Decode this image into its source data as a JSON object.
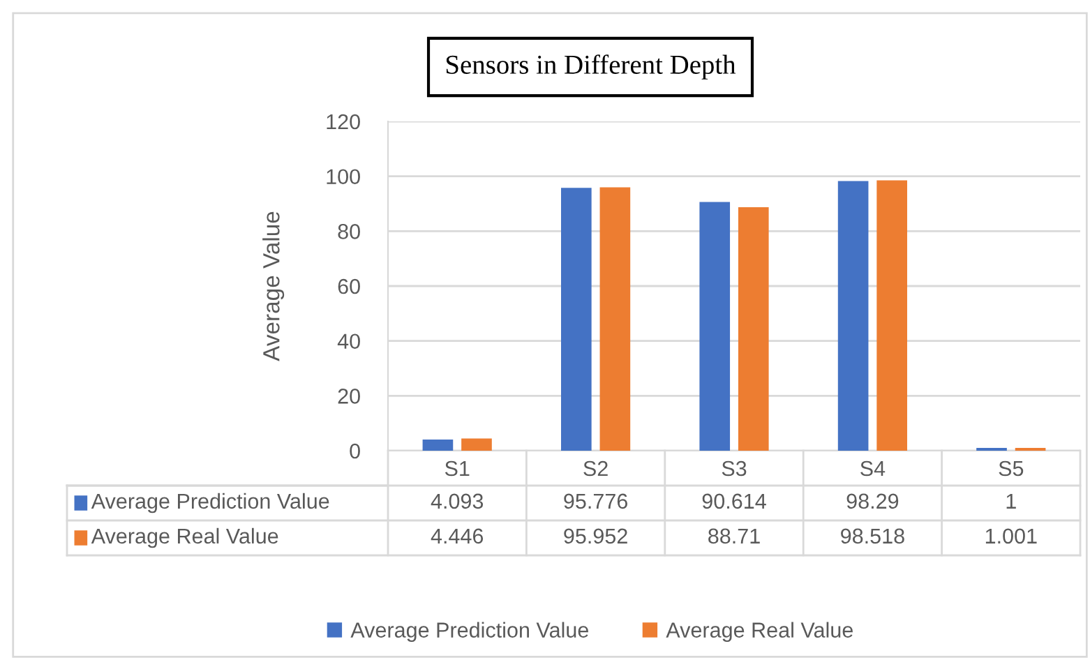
{
  "chart_data": {
    "type": "bar",
    "title": "Sensors in Different Depth",
    "ylabel": "Average Value",
    "categories": [
      "S1",
      "S2",
      "S3",
      "S4",
      "S5"
    ],
    "series": [
      {
        "name": "Average Prediction Value",
        "color": "#4472c4",
        "values": [
          4.093,
          95.776,
          90.614,
          98.29,
          1
        ]
      },
      {
        "name": "Average Real Value",
        "color": "#ed7d31",
        "values": [
          4.446,
          95.952,
          88.71,
          98.518,
          1.001
        ]
      }
    ],
    "ylim": [
      0,
      120
    ],
    "yticks": [
      0,
      20,
      40,
      60,
      80,
      100,
      120
    ],
    "grid": "y",
    "legend": "bottom",
    "data_labels": true
  }
}
